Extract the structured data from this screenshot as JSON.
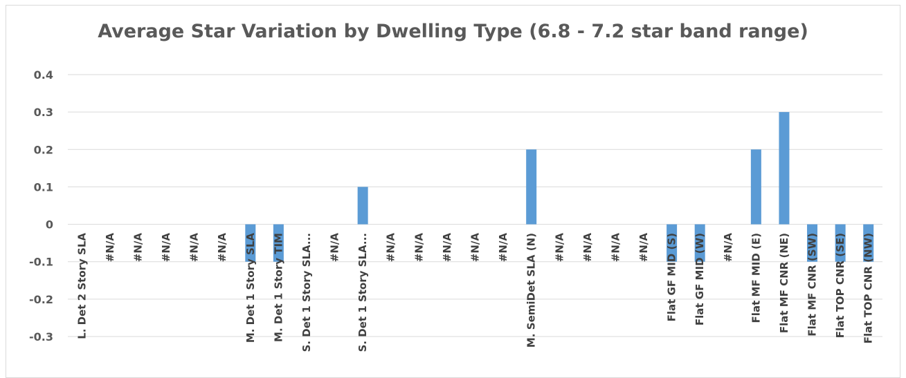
{
  "chart_data": {
    "type": "bar",
    "title": "Average Star Variation by Dwelling Type (6.8 - 7.2 star band range)",
    "xlabel": "",
    "ylabel": "",
    "ylim": [
      -0.3,
      0.4
    ],
    "y_ticks": [
      "0.4",
      "0.3",
      "0.2",
      "0.1",
      "0",
      "-0.1",
      "-0.2",
      "-0.3"
    ],
    "y_tick_values": [
      0.4,
      0.3,
      0.2,
      0.1,
      0,
      -0.1,
      -0.2,
      -0.3
    ],
    "grid": true,
    "legend": "none",
    "bar_color": "#5b9bd5",
    "categories": [
      "L. Det 2 Story SLA",
      "#N/A",
      "#N/A",
      "#N/A",
      "#N/A",
      "#N/A",
      "M. Det 1 Story SLA",
      "M. Det 1 Story TIM",
      "S. Det 1 Story SLA...",
      "#N/A",
      "S. Det 1 Story SLA...",
      "#N/A",
      "#N/A",
      "#N/A",
      "#N/A",
      "#N/A",
      "M. SemiDet SLA (N)",
      "#N/A",
      "#N/A",
      "#N/A",
      "#N/A",
      "Flat GF MID (S)",
      "Flat GF MID (W)",
      "#N/A",
      "Flat MF MID (E)",
      "Flat MF CNR (NE)",
      "Flat MF CNR (SW)",
      "Flat TOP CNR (SE)",
      "Flat TOP CNR (NW)"
    ],
    "values": [
      0,
      0,
      0,
      0,
      0,
      0,
      -0.1,
      -0.1,
      0,
      0,
      0.1,
      0,
      0,
      0,
      0,
      0,
      0.2,
      0,
      0,
      0,
      0,
      -0.1,
      -0.1,
      0,
      0.2,
      0.3,
      -0.1,
      -0.1,
      -0.1
    ]
  }
}
